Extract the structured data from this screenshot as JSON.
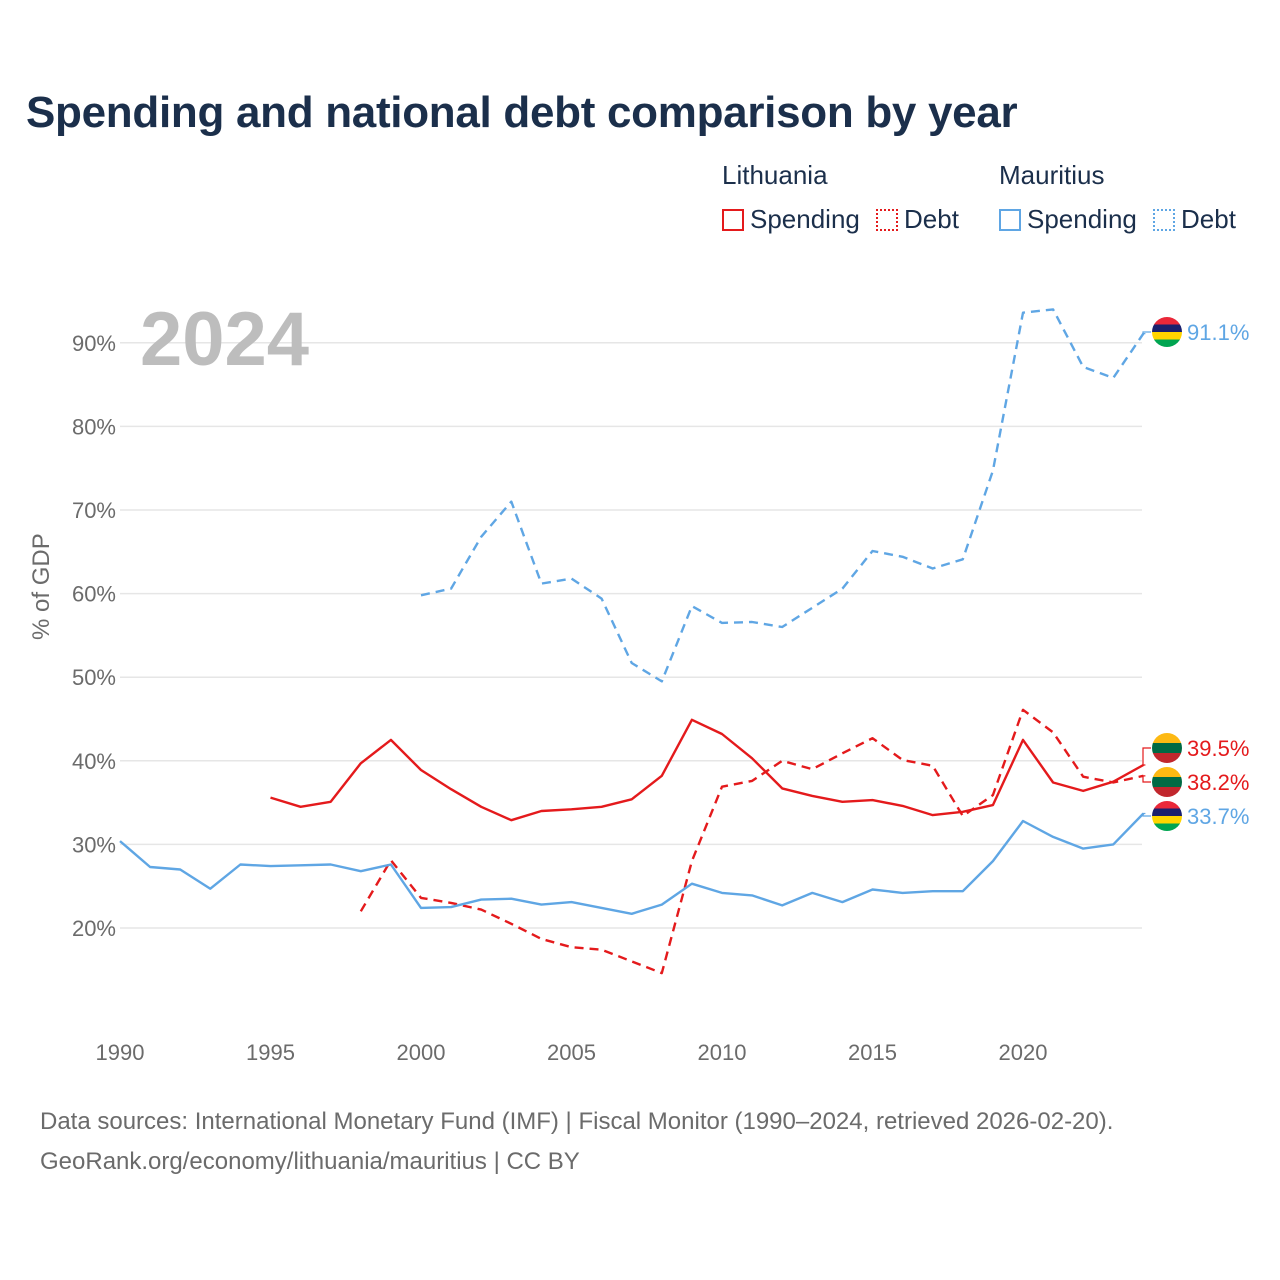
{
  "chart_data": {
    "type": "line",
    "title": "Spending and national debt comparison by year",
    "year_label": "2024",
    "ylabel": "% of GDP",
    "xlabel": "",
    "xlim": [
      1990,
      2024
    ],
    "ylim": [
      10,
      95
    ],
    "x_ticks": [
      1990,
      1995,
      2000,
      2005,
      2010,
      2015,
      2020
    ],
    "y_ticks": [
      20,
      30,
      40,
      50,
      60,
      70,
      80,
      90
    ],
    "y_tick_labels": [
      "20%",
      "30%",
      "40%",
      "50%",
      "60%",
      "70%",
      "80%",
      "90%"
    ],
    "grid": true,
    "legend": {
      "groups": [
        {
          "country": "Lithuania",
          "color": "#e41a1c",
          "items": [
            "Spending",
            "Debt"
          ]
        },
        {
          "country": "Mauritius",
          "color": "#5fa6e4",
          "items": [
            "Spending",
            "Debt"
          ]
        }
      ]
    },
    "series": [
      {
        "name": "Mauritius Debt",
        "country": "Mauritius",
        "metric": "Debt",
        "color": "#5fa6e4",
        "dash": true,
        "end_label": "91.1%",
        "flag": "mauritius",
        "x": [
          2000,
          2001,
          2002,
          2003,
          2004,
          2005,
          2006,
          2007,
          2008,
          2009,
          2010,
          2011,
          2012,
          2013,
          2014,
          2015,
          2016,
          2017,
          2018,
          2019,
          2020,
          2021,
          2022,
          2023,
          2024
        ],
        "values": [
          59.8,
          60.6,
          66.8,
          71.0,
          61.2,
          61.8,
          59.4,
          51.7,
          49.5,
          58.5,
          56.5,
          56.6,
          56.0,
          58.3,
          60.6,
          65.1,
          64.4,
          63.0,
          64.1,
          74.7,
          93.6,
          94.0,
          87.1,
          85.8,
          91.1
        ]
      },
      {
        "name": "Lithuania Spending",
        "country": "Lithuania",
        "metric": "Spending",
        "color": "#e41a1c",
        "dash": false,
        "end_label": "39.5%",
        "flag": "lithuania",
        "x": [
          1995,
          1996,
          1997,
          1998,
          1999,
          2000,
          2001,
          2002,
          2003,
          2004,
          2005,
          2006,
          2007,
          2008,
          2009,
          2010,
          2011,
          2012,
          2013,
          2014,
          2015,
          2016,
          2017,
          2018,
          2019,
          2020,
          2021,
          2022,
          2023,
          2024
        ],
        "values": [
          35.6,
          34.5,
          35.1,
          39.7,
          42.5,
          38.9,
          36.6,
          34.5,
          32.9,
          34.0,
          34.2,
          34.5,
          35.4,
          38.2,
          44.9,
          43.2,
          40.3,
          36.7,
          35.8,
          35.1,
          35.3,
          34.6,
          33.5,
          33.9,
          34.7,
          42.5,
          37.4,
          36.4,
          37.5,
          39.5
        ]
      },
      {
        "name": "Lithuania Debt",
        "country": "Lithuania",
        "metric": "Debt",
        "color": "#e41a1c",
        "dash": true,
        "end_label": "38.2%",
        "flag": "lithuania",
        "x": [
          1998,
          1999,
          2000,
          2001,
          2002,
          2003,
          2004,
          2005,
          2006,
          2007,
          2008,
          2009,
          2010,
          2011,
          2012,
          2013,
          2014,
          2015,
          2016,
          2017,
          2018,
          2019,
          2020,
          2021,
          2022,
          2023,
          2024
        ],
        "values": [
          22.0,
          28.1,
          23.6,
          23.0,
          22.2,
          20.5,
          18.7,
          17.7,
          17.4,
          16.0,
          14.6,
          28.0,
          36.9,
          37.6,
          40.0,
          39.0,
          40.9,
          42.7,
          40.1,
          39.4,
          33.4,
          35.9,
          46.1,
          43.4,
          38.1,
          37.4,
          38.2
        ]
      },
      {
        "name": "Mauritius Spending",
        "country": "Mauritius",
        "metric": "Spending",
        "color": "#5fa6e4",
        "dash": false,
        "end_label": "33.7%",
        "flag": "mauritius",
        "x": [
          1990,
          1991,
          1992,
          1993,
          1994,
          1995,
          1996,
          1997,
          1998,
          1999,
          2000,
          2001,
          2002,
          2003,
          2004,
          2005,
          2006,
          2007,
          2008,
          2009,
          2010,
          2011,
          2012,
          2013,
          2014,
          2015,
          2016,
          2017,
          2018,
          2019,
          2020,
          2021,
          2022,
          2023,
          2024
        ],
        "values": [
          30.4,
          27.3,
          27.0,
          24.7,
          27.6,
          27.4,
          27.5,
          27.6,
          26.8,
          27.6,
          22.4,
          22.5,
          23.4,
          23.5,
          22.8,
          23.1,
          22.4,
          21.7,
          22.8,
          25.3,
          24.2,
          23.9,
          22.7,
          24.2,
          23.1,
          24.6,
          24.2,
          24.4,
          24.4,
          28.0,
          32.8,
          30.9,
          29.5,
          30.0,
          33.7
        ]
      }
    ]
  },
  "footer": {
    "line1": "Data sources: International Monetary Fund (IMF) | Fiscal Monitor (1990–2024, retrieved 2026-02-20).",
    "line2": "GeoRank.org/economy/lithuania/mauritius | CC BY"
  }
}
